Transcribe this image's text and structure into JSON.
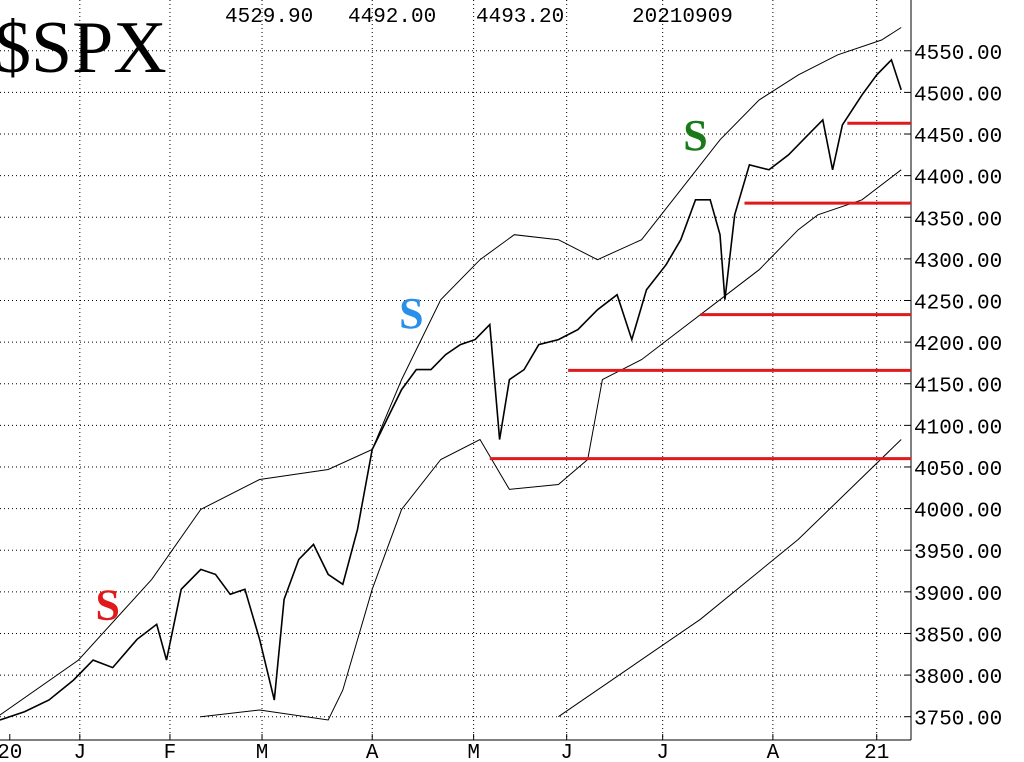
{
  "chart_data": {
    "type": "line",
    "title": "$SPX",
    "header_values": [
      "4529.90",
      "4492.00",
      "4493.20",
      "20210909"
    ],
    "xlim": [
      0,
      186
    ],
    "ylim": [
      3722,
      4611
    ],
    "xticks": [
      {
        "value": 2,
        "label": "20"
      },
      {
        "value": 16.3,
        "label": "J"
      },
      {
        "value": 34.7,
        "label": "F"
      },
      {
        "value": 53.5,
        "label": "M"
      },
      {
        "value": 76,
        "label": "A"
      },
      {
        "value": 96.7,
        "label": "M"
      },
      {
        "value": 115.7,
        "label": "J"
      },
      {
        "value": 135.3,
        "label": "J"
      },
      {
        "value": 157.8,
        "label": "A"
      },
      {
        "value": 179,
        "label": "21"
      }
    ],
    "yticks": [
      {
        "value": 3750,
        "label": "3750.00"
      },
      {
        "value": 3800,
        "label": "3800.00"
      },
      {
        "value": 3850,
        "label": "3850.00"
      },
      {
        "value": 3900,
        "label": "3900.00"
      },
      {
        "value": 3950,
        "label": "3950.00"
      },
      {
        "value": 4000,
        "label": "4000.00"
      },
      {
        "value": 4050,
        "label": "4050.00"
      },
      {
        "value": 4100,
        "label": "4100.00"
      },
      {
        "value": 4150,
        "label": "4150.00"
      },
      {
        "value": 4200,
        "label": "4200.00"
      },
      {
        "value": 4250,
        "label": "4250.00"
      },
      {
        "value": 4300,
        "label": "4300.00"
      },
      {
        "value": 4350,
        "label": "4350.00"
      },
      {
        "value": 4400,
        "label": "4400.00"
      },
      {
        "value": 4450,
        "label": "4450.00"
      },
      {
        "value": 4500,
        "label": "4500.00"
      },
      {
        "value": 4550,
        "label": "4550.00"
      }
    ],
    "grid": true,
    "series": [
      {
        "color": "#000000",
        "width": 1.6,
        "x": [
          0,
          5,
          10,
          15,
          19,
          23,
          28,
          32,
          34,
          37,
          41,
          44,
          47,
          50,
          53,
          56,
          58,
          61,
          64,
          67,
          70,
          73,
          76,
          79,
          82,
          85,
          88,
          91,
          94,
          97,
          100,
          102,
          104,
          107,
          110,
          114,
          118,
          122,
          126,
          129,
          132,
          136,
          139,
          142,
          145,
          147,
          148,
          150,
          153,
          157,
          161,
          165,
          168,
          170,
          172,
          176,
          179,
          182,
          184
        ],
        "values": [
          3746,
          3756,
          3770,
          3794,
          3818,
          3809,
          3843,
          3861,
          3818,
          3903,
          3927,
          3921,
          3897,
          3903,
          3843,
          3770,
          3891,
          3939,
          3957,
          3921,
          3909,
          3975,
          4071,
          4107,
          4143,
          4167,
          4167,
          4185,
          4197,
          4203,
          4221,
          4083,
          4155,
          4167,
          4197,
          4203,
          4215,
          4239,
          4257,
          4203,
          4263,
          4293,
          4323,
          4371,
          4371,
          4329,
          4251,
          4353,
          4413,
          4407,
          4425,
          4449,
          4467,
          4407,
          4461,
          4497,
          4521,
          4539,
          4503
        ]
      },
      {
        "color": "#000000",
        "width": 1,
        "x": [
          0,
          16,
          31,
          41,
          53,
          67,
          76,
          82,
          90,
          98,
          105,
          114,
          122,
          131,
          139,
          147,
          155,
          163,
          171,
          180,
          184
        ],
        "values": [
          3752,
          3818,
          3915,
          3999,
          4035,
          4047,
          4071,
          4155,
          4251,
          4299,
          4329,
          4323,
          4299,
          4323,
          4383,
          4443,
          4491,
          4521,
          4545,
          4563,
          4578
        ]
      },
      {
        "color": "#000000",
        "width": 1,
        "x": [
          41,
          53,
          67,
          70,
          76,
          82,
          90,
          98,
          104,
          114,
          120,
          123,
          131,
          139,
          147,
          155,
          163,
          167,
          176,
          184
        ],
        "values": [
          3750,
          3758,
          3746,
          3782,
          3903,
          3999,
          4059,
          4083,
          4023,
          4029,
          4059,
          4155,
          4179,
          4215,
          4251,
          4287,
          4335,
          4353,
          4371,
          4407
        ]
      },
      {
        "color": "#000000",
        "width": 1,
        "x": [
          114,
          143,
          163,
          184
        ],
        "values": [
          3750,
          3867,
          3963,
          4083
        ]
      }
    ],
    "support_color": "#e0191b",
    "support_levels": [
      {
        "value": 4463,
        "start": 173
      },
      {
        "value": 4367,
        "start": 152
      },
      {
        "value": 4233,
        "start": 143
      },
      {
        "value": 4166,
        "start": 116
      },
      {
        "value": 4060,
        "start": 100
      }
    ],
    "annotations": [
      {
        "text": "S",
        "color": "#e0191b",
        "x": 22,
        "y": 3879
      },
      {
        "text": "S",
        "color": "#2a8fe8",
        "x": 84,
        "y": 4229
      },
      {
        "text": "S",
        "color": "#1a7a1a",
        "x": 142,
        "y": 4443
      }
    ]
  }
}
